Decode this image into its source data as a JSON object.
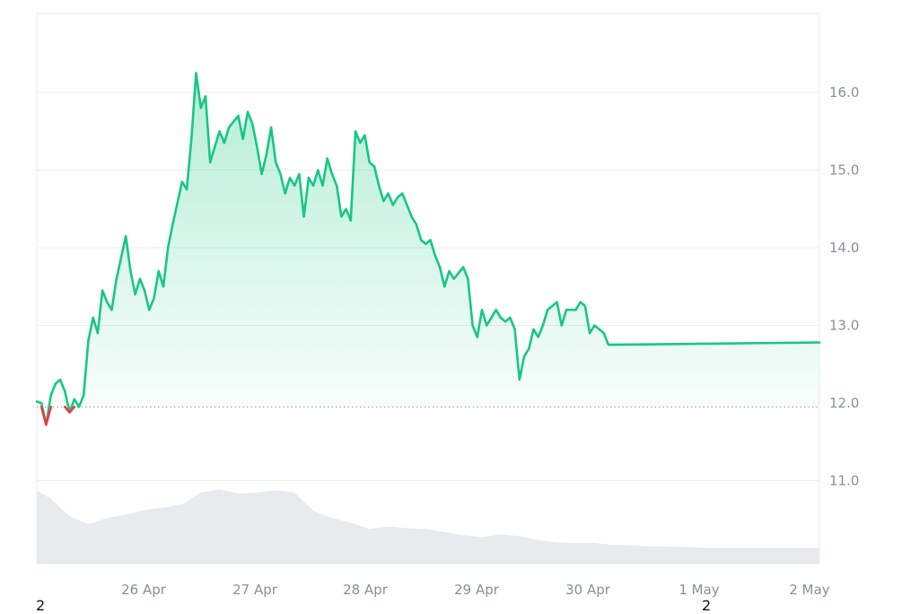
{
  "chart_data": {
    "type": "area",
    "x_ticks": [
      "26 Apr",
      "27 Apr",
      "28 Apr",
      "29 Apr",
      "30 Apr",
      "1 May",
      "2 May"
    ],
    "y_ticks": [
      "11.0",
      "12.0",
      "13.0",
      "14.0",
      "15.0",
      "16.0"
    ],
    "ylim": [
      10.0,
      17.0
    ],
    "baseline": 11.95,
    "x_start": "2024-04-25T05:00",
    "x_end": "2024-05-02T04:00",
    "colors": {
      "up": "#16c784",
      "down": "#ea3943",
      "grid": "#ebedf0",
      "axis_text": "#8a8f98",
      "volume": "#e8eaee"
    },
    "grid": true,
    "series": [
      {
        "values": [
          [
            "2024-04-25T05:00",
            12.02
          ],
          [
            "2024-04-25T06:00",
            12.0
          ],
          [
            "2024-04-25T07:00",
            11.72
          ],
          [
            "2024-04-25T08:00",
            12.1
          ],
          [
            "2024-04-25T09:00",
            12.25
          ],
          [
            "2024-04-25T10:00",
            12.3
          ],
          [
            "2024-04-25T11:00",
            12.15
          ],
          [
            "2024-04-25T12:00",
            11.88
          ],
          [
            "2024-04-25T13:00",
            12.05
          ],
          [
            "2024-04-25T14:00",
            11.95
          ],
          [
            "2024-04-25T15:00",
            12.1
          ],
          [
            "2024-04-25T16:00",
            12.8
          ],
          [
            "2024-04-25T17:00",
            13.1
          ],
          [
            "2024-04-25T18:00",
            12.9
          ],
          [
            "2024-04-25T19:00",
            13.45
          ],
          [
            "2024-04-25T20:00",
            13.3
          ],
          [
            "2024-04-25T21:00",
            13.2
          ],
          [
            "2024-04-25T22:00",
            13.6
          ],
          [
            "2024-04-26T00:00",
            14.15
          ],
          [
            "2024-04-26T01:00",
            13.7
          ],
          [
            "2024-04-26T02:00",
            13.4
          ],
          [
            "2024-04-26T03:00",
            13.6
          ],
          [
            "2024-04-26T04:00",
            13.45
          ],
          [
            "2024-04-26T05:00",
            13.2
          ],
          [
            "2024-04-26T06:00",
            13.35
          ],
          [
            "2024-04-26T07:00",
            13.7
          ],
          [
            "2024-04-26T08:00",
            13.5
          ],
          [
            "2024-04-26T09:00",
            14.0
          ],
          [
            "2024-04-26T10:00",
            14.3
          ],
          [
            "2024-04-26T12:00",
            14.85
          ],
          [
            "2024-04-26T13:00",
            14.75
          ],
          [
            "2024-04-26T14:00",
            15.4
          ],
          [
            "2024-04-26T15:00",
            16.25
          ],
          [
            "2024-04-26T16:00",
            15.8
          ],
          [
            "2024-04-26T17:00",
            15.95
          ],
          [
            "2024-04-26T18:00",
            15.1
          ],
          [
            "2024-04-26T19:00",
            15.3
          ],
          [
            "2024-04-26T20:00",
            15.5
          ],
          [
            "2024-04-26T21:00",
            15.35
          ],
          [
            "2024-04-26T22:00",
            15.55
          ],
          [
            "2024-04-27T00:00",
            15.7
          ],
          [
            "2024-04-27T01:00",
            15.4
          ],
          [
            "2024-04-27T02:00",
            15.75
          ],
          [
            "2024-04-27T03:00",
            15.6
          ],
          [
            "2024-04-27T04:00",
            15.3
          ],
          [
            "2024-04-27T05:00",
            14.95
          ],
          [
            "2024-04-27T06:00",
            15.2
          ],
          [
            "2024-04-27T07:00",
            15.55
          ],
          [
            "2024-04-27T08:00",
            15.1
          ],
          [
            "2024-04-27T09:00",
            14.95
          ],
          [
            "2024-04-27T10:00",
            14.7
          ],
          [
            "2024-04-27T11:00",
            14.9
          ],
          [
            "2024-04-27T12:00",
            14.8
          ],
          [
            "2024-04-27T13:00",
            14.95
          ],
          [
            "2024-04-27T14:00",
            14.4
          ],
          [
            "2024-04-27T15:00",
            14.9
          ],
          [
            "2024-04-27T16:00",
            14.8
          ],
          [
            "2024-04-27T17:00",
            15.0
          ],
          [
            "2024-04-27T18:00",
            14.8
          ],
          [
            "2024-04-27T19:00",
            15.15
          ],
          [
            "2024-04-27T20:00",
            14.95
          ],
          [
            "2024-04-27T21:00",
            14.8
          ],
          [
            "2024-04-27T22:00",
            14.4
          ],
          [
            "2024-04-27T23:00",
            14.5
          ],
          [
            "2024-04-28T00:00",
            14.35
          ],
          [
            "2024-04-28T01:00",
            15.5
          ],
          [
            "2024-04-28T02:00",
            15.35
          ],
          [
            "2024-04-28T03:00",
            15.45
          ],
          [
            "2024-04-28T04:00",
            15.1
          ],
          [
            "2024-04-28T05:00",
            15.05
          ],
          [
            "2024-04-28T06:00",
            14.8
          ],
          [
            "2024-04-28T07:00",
            14.6
          ],
          [
            "2024-04-28T08:00",
            14.7
          ],
          [
            "2024-04-28T09:00",
            14.55
          ],
          [
            "2024-04-28T10:00",
            14.65
          ],
          [
            "2024-04-28T11:00",
            14.7
          ],
          [
            "2024-04-28T12:00",
            14.55
          ],
          [
            "2024-04-28T13:00",
            14.4
          ],
          [
            "2024-04-28T14:00",
            14.3
          ],
          [
            "2024-04-28T15:00",
            14.1
          ],
          [
            "2024-04-28T16:00",
            14.05
          ],
          [
            "2024-04-28T17:00",
            14.1
          ],
          [
            "2024-04-28T18:00",
            13.9
          ],
          [
            "2024-04-28T19:00",
            13.75
          ],
          [
            "2024-04-28T20:00",
            13.5
          ],
          [
            "2024-04-28T21:00",
            13.7
          ],
          [
            "2024-04-28T22:00",
            13.6
          ],
          [
            "2024-04-29T00:00",
            13.75
          ],
          [
            "2024-04-29T01:00",
            13.6
          ],
          [
            "2024-04-29T02:00",
            13.0
          ],
          [
            "2024-04-29T03:00",
            12.85
          ],
          [
            "2024-04-29T04:00",
            13.2
          ],
          [
            "2024-04-29T05:00",
            13.0
          ],
          [
            "2024-04-29T06:00",
            13.1
          ],
          [
            "2024-04-29T07:00",
            13.2
          ],
          [
            "2024-04-29T08:00",
            13.1
          ],
          [
            "2024-04-29T09:00",
            13.05
          ],
          [
            "2024-04-29T10:00",
            13.1
          ],
          [
            "2024-04-29T11:00",
            12.95
          ],
          [
            "2024-04-29T12:00",
            12.3
          ],
          [
            "2024-04-29T13:00",
            12.6
          ],
          [
            "2024-04-29T14:00",
            12.7
          ],
          [
            "2024-04-29T15:00",
            12.95
          ],
          [
            "2024-04-29T16:00",
            12.85
          ],
          [
            "2024-04-29T17:00",
            13.0
          ],
          [
            "2024-04-29T18:00",
            13.2
          ],
          [
            "2024-04-29T19:00",
            13.25
          ],
          [
            "2024-04-29T20:00",
            13.3
          ],
          [
            "2024-04-29T21:00",
            13.0
          ],
          [
            "2024-04-29T22:00",
            13.2
          ],
          [
            "2024-04-30T00:00",
            13.2
          ],
          [
            "2024-04-30T01:00",
            13.3
          ],
          [
            "2024-04-30T02:00",
            13.25
          ],
          [
            "2024-04-30T03:00",
            12.9
          ],
          [
            "2024-04-30T04:00",
            13.0
          ],
          [
            "2024-04-30T05:00",
            12.95
          ],
          [
            "2024-04-30T06:00",
            12.9
          ],
          [
            "2024-04-30T07:00",
            12.75
          ],
          [
            "2024-05-02T04:00",
            12.78
          ]
        ]
      }
    ],
    "volume": [
      [
        "2024-04-25T05:00",
        0.93
      ],
      [
        "2024-04-25T08:00",
        0.82
      ],
      [
        "2024-04-25T12:00",
        0.6
      ],
      [
        "2024-04-25T16:00",
        0.5
      ],
      [
        "2024-04-25T20:00",
        0.58
      ],
      [
        "2024-04-26T00:00",
        0.62
      ],
      [
        "2024-04-26T04:00",
        0.68
      ],
      [
        "2024-04-26T08:00",
        0.71
      ],
      [
        "2024-04-26T12:00",
        0.75
      ],
      [
        "2024-04-26T16:00",
        0.9
      ],
      [
        "2024-04-26T20:00",
        0.94
      ],
      [
        "2024-04-27T00:00",
        0.89
      ],
      [
        "2024-04-27T04:00",
        0.9
      ],
      [
        "2024-04-27T08:00",
        0.93
      ],
      [
        "2024-04-27T12:00",
        0.9
      ],
      [
        "2024-04-27T16:00",
        0.67
      ],
      [
        "2024-04-27T20:00",
        0.58
      ],
      [
        "2024-04-28T00:00",
        0.52
      ],
      [
        "2024-04-28T04:00",
        0.44
      ],
      [
        "2024-04-28T08:00",
        0.47
      ],
      [
        "2024-04-28T12:00",
        0.45
      ],
      [
        "2024-04-28T16:00",
        0.44
      ],
      [
        "2024-04-28T20:00",
        0.4
      ],
      [
        "2024-04-29T00:00",
        0.36
      ],
      [
        "2024-04-29T04:00",
        0.34
      ],
      [
        "2024-04-29T08:00",
        0.37
      ],
      [
        "2024-04-29T12:00",
        0.35
      ],
      [
        "2024-04-29T16:00",
        0.3
      ],
      [
        "2024-04-29T20:00",
        0.27
      ],
      [
        "2024-04-30T00:00",
        0.26
      ],
      [
        "2024-04-30T04:00",
        0.26
      ],
      [
        "2024-04-30T08:00",
        0.24
      ],
      [
        "2024-04-30T12:00",
        0.23
      ],
      [
        "2024-04-30T16:00",
        0.22
      ],
      [
        "2024-04-30T20:00",
        0.22
      ],
      [
        "2024-05-01T00:00",
        0.21
      ],
      [
        "2024-05-01T04:00",
        0.2
      ],
      [
        "2024-05-02T04:00",
        0.2
      ]
    ]
  },
  "corner_labels": {
    "bottom_left": "2",
    "bottom_right": "2"
  }
}
